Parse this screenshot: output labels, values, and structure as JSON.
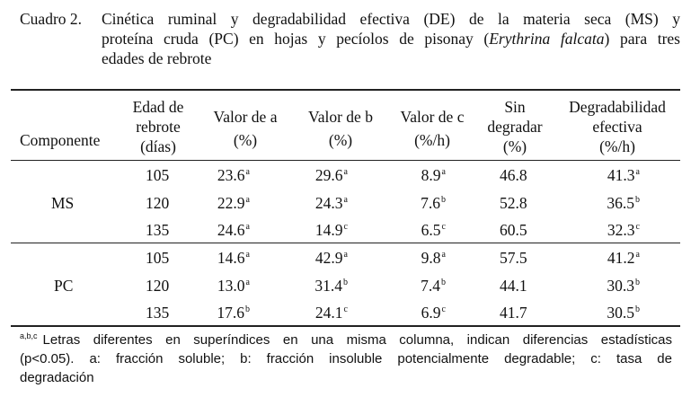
{
  "caption": {
    "label": "Cuadro 2.",
    "line1": "Cinética ruminal y degradabilidad efectiva (DE) de la materia seca (MS) y",
    "line2_pre": "proteína cruda (PC) en hojas y pecíolos de pisonay (",
    "line2_italic": "Erythrina falcata",
    "line2_post": ") para tres",
    "line3": "edades de rebrote"
  },
  "table": {
    "headers": {
      "componente": "Componente",
      "edad": [
        "Edad de",
        "rebrote",
        "(días)"
      ],
      "a": [
        "Valor de a",
        "(%)"
      ],
      "b": [
        "Valor de b",
        "(%)"
      ],
      "c": [
        "Valor de c",
        "(%/h)"
      ],
      "sin": [
        "Sin",
        "degradar",
        "(%)"
      ],
      "de": [
        "Degradabilidad",
        "efectiva",
        "(%/h)"
      ]
    },
    "groups": [
      {
        "component": "MS",
        "rows": [
          {
            "edad": "105",
            "a": "23.6",
            "a_sup": "a",
            "b": "29.6",
            "b_sup": "a",
            "c": "8.9",
            "c_sup": "a",
            "sin": "46.8",
            "de": "41.3",
            "de_sup": "a"
          },
          {
            "edad": "120",
            "a": "22.9",
            "a_sup": "a",
            "b": "24.3",
            "b_sup": "a",
            "c": "7.6",
            "c_sup": "b",
            "sin": "52.8",
            "de": "36.5",
            "de_sup": "b"
          },
          {
            "edad": "135",
            "a": "24.6",
            "a_sup": "a",
            "b": "14.9",
            "b_sup": "c",
            "c": "6.5",
            "c_sup": "c",
            "sin": "60.5",
            "de": "32.3",
            "de_sup": "c"
          }
        ]
      },
      {
        "component": "PC",
        "rows": [
          {
            "edad": "105",
            "a": "14.6",
            "a_sup": "a",
            "b": "42.9",
            "b_sup": "a",
            "c": "9.8",
            "c_sup": "a",
            "sin": "57.5",
            "de": "41.2",
            "de_sup": "a"
          },
          {
            "edad": "120",
            "a": "13.0",
            "a_sup": "a",
            "b": "31.4",
            "b_sup": "b",
            "c": "7.4",
            "c_sup": "b",
            "sin": "44.1",
            "de": "30.3",
            "de_sup": "b"
          },
          {
            "edad": "135",
            "a": "17.6",
            "a_sup": "b",
            "b": "24.1",
            "b_sup": "c",
            "c": "6.9",
            "c_sup": "c",
            "sin": "41.7",
            "de": "30.5",
            "de_sup": "b"
          }
        ]
      }
    ]
  },
  "footnote": {
    "sup": "a,b,c",
    "line1": "Letras diferentes en superíndices en una misma columna, indican diferencias estadísticas",
    "line2": "(p<0.05). a: fracción soluble; b: fracción insoluble potencialmente degradable; c: tasa de",
    "line3": "degradación"
  }
}
